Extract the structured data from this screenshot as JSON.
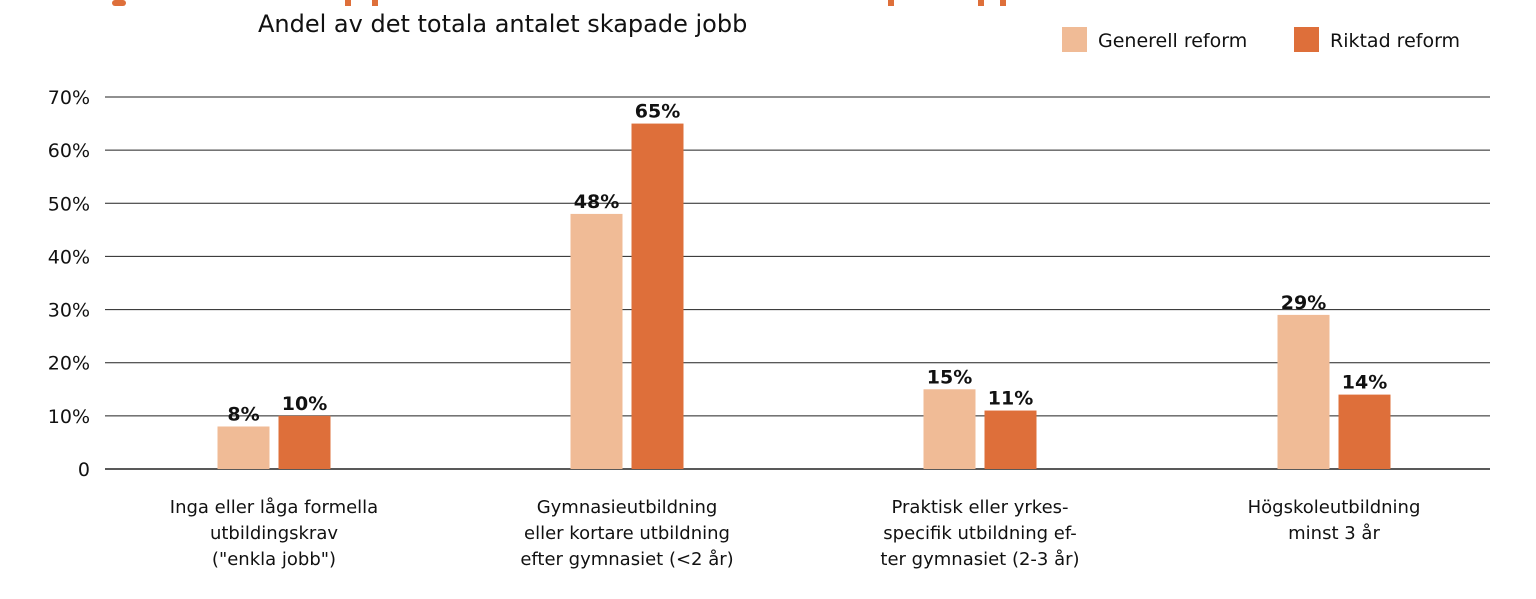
{
  "chart_data": {
    "type": "bar",
    "title": "Andel av det totala antalet skapade jobb",
    "xlabel": "",
    "ylabel": "",
    "ylim": [
      0,
      70
    ],
    "yticks": [
      0,
      10,
      20,
      30,
      40,
      50,
      60,
      70
    ],
    "ytick_labels": [
      "0",
      "10%",
      "20%",
      "30%",
      "40%",
      "50%",
      "60%",
      "70%"
    ],
    "grid": true,
    "legend_position": "top-right",
    "categories": [
      [
        "Inga eller låga formella",
        "utbildingskrav",
        "(\"enkla jobb\")"
      ],
      [
        "Gymnasieutbildning",
        "eller kortare utbildning",
        "efter gymnasiet (<2 år)"
      ],
      [
        "Praktisk eller yrkes-",
        "specifik utbildning ef-",
        "ter gymnasiet (2-3 år)"
      ],
      [
        "Högskoleutbildning",
        "minst 3 år"
      ]
    ],
    "series": [
      {
        "name": "Generell reform",
        "color": "#F0BB96",
        "values": [
          8,
          48,
          15,
          29
        ],
        "labels": [
          "8%",
          "48%",
          "15%",
          "29%"
        ]
      },
      {
        "name": "Riktad reform",
        "color": "#DE6F3A",
        "values": [
          10,
          65,
          11,
          14
        ],
        "labels": [
          "10%",
          "65%",
          "11%",
          "14%"
        ]
      }
    ]
  }
}
